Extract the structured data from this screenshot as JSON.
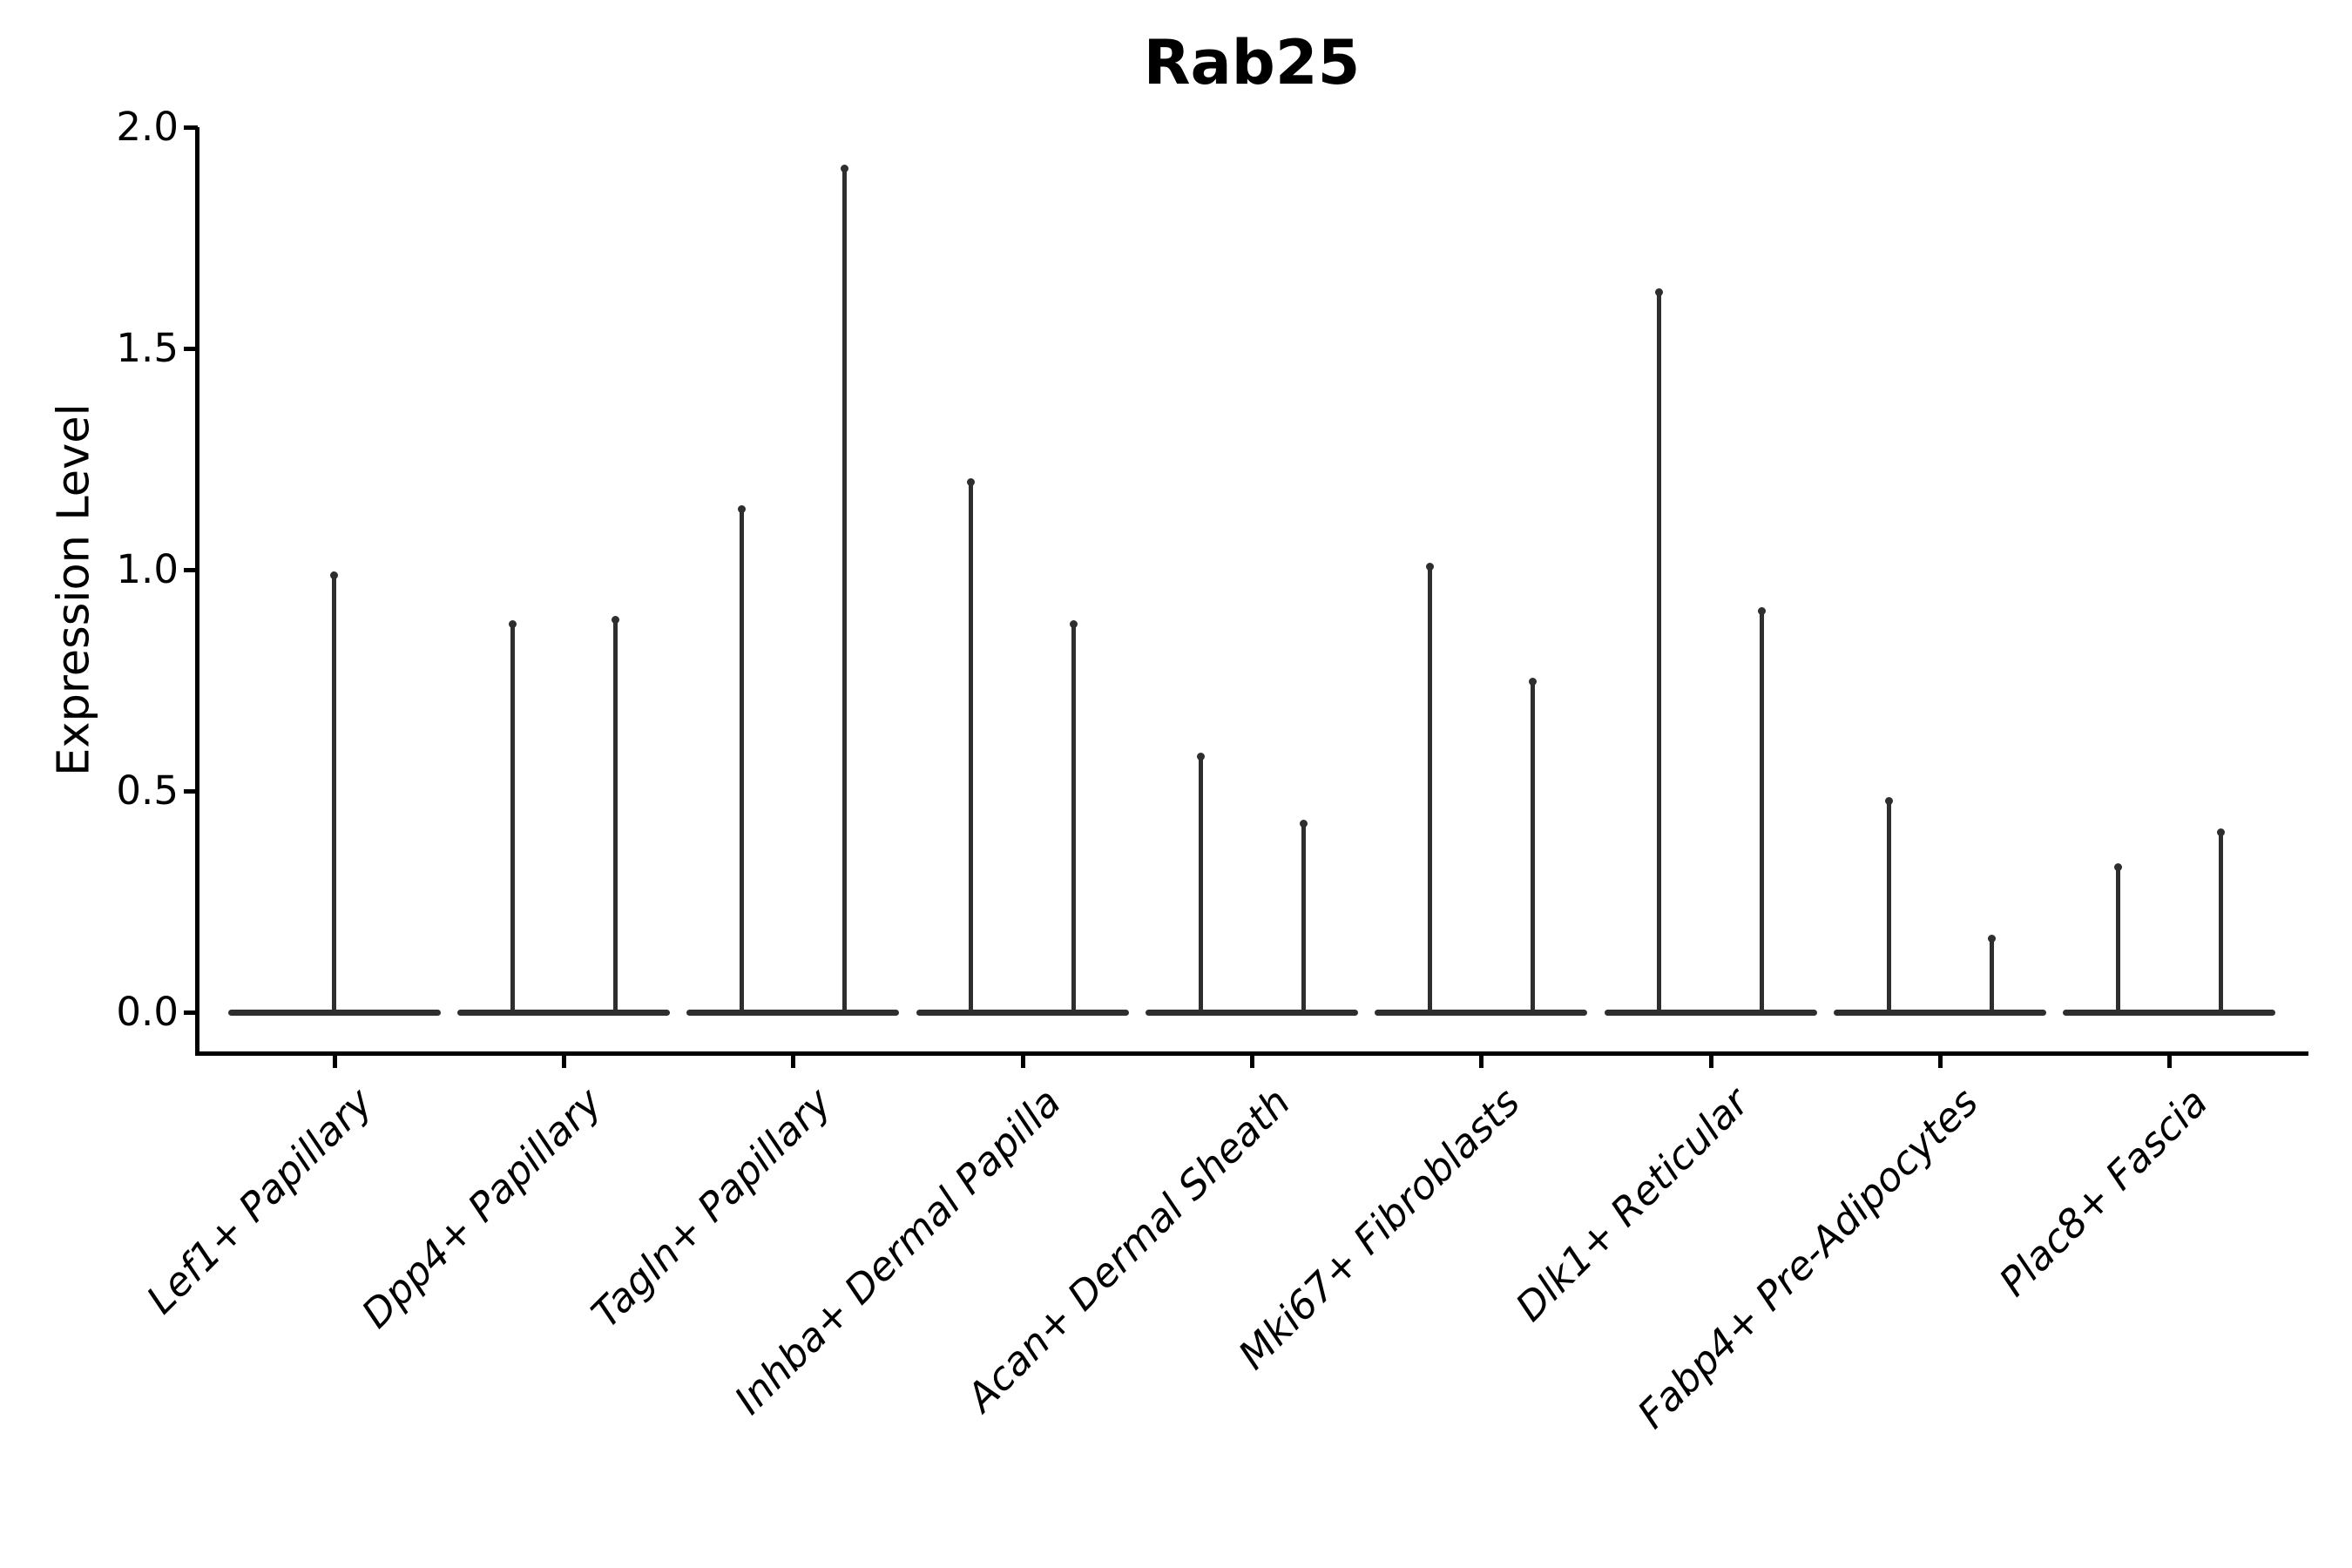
{
  "header": {
    "title": "Rab25"
  },
  "y_axis": {
    "label": "Expression Level",
    "tick_labels": [
      "2.0",
      "1.5",
      "1.0",
      "0.5",
      "0.0"
    ]
  },
  "x_axis": {
    "labels": [
      "Lef1+ Papillary",
      "Dpp4+ Papillary",
      "Tagln+ Papillary",
      "Inhba+ Dermal Papilla",
      "Acan+ Dermal Sheath",
      "Mki67+ Fibroblasts",
      "Dlk1+ Reticular",
      "Fabp4+ Pre-Adipocytes",
      "Plac8+ Fascia"
    ]
  },
  "chart_data": {
    "type": "violin",
    "title": "Rab25",
    "xlabel": "",
    "ylabel": "Expression Level",
    "ylim": [
      -0.09,
      2.0
    ],
    "yticks": [
      2.0,
      1.5,
      1.0,
      0.5,
      0.0
    ],
    "grid": false,
    "legend": false,
    "colors": {
      "violin": "#2e2e2e",
      "axis": "#000000",
      "text": "#000000",
      "background": "#ffffff"
    },
    "categories": [
      "Lef1+ Papillary",
      "Dpp4+ Papillary",
      "Tagln+ Papillary",
      "Inhba+ Dermal Papilla",
      "Acan+ Dermal Sheath",
      "Mki67+ Fibroblasts",
      "Dlk1+ Reticular",
      "Fabp4+ Pre-Adipocytes",
      "Plac8+ Fascia"
    ],
    "violins": [
      {
        "category": "Lef1+ Papillary",
        "base_value": 0.0,
        "spikes": [
          {
            "side": "center",
            "max": 0.99
          }
        ]
      },
      {
        "category": "Dpp4+ Papillary",
        "base_value": 0.0,
        "spikes": [
          {
            "side": "left",
            "max": 0.88
          },
          {
            "side": "right",
            "max": 0.89
          }
        ]
      },
      {
        "category": "Tagln+ Papillary",
        "base_value": 0.0,
        "spikes": [
          {
            "side": "left",
            "max": 1.14
          },
          {
            "side": "right",
            "max": 1.91
          }
        ]
      },
      {
        "category": "Inhba+ Dermal Papilla",
        "base_value": 0.0,
        "spikes": [
          {
            "side": "left",
            "max": 1.2
          },
          {
            "side": "right",
            "max": 0.88
          }
        ]
      },
      {
        "category": "Acan+ Dermal Sheath",
        "base_value": 0.0,
        "spikes": [
          {
            "side": "left",
            "max": 0.58
          },
          {
            "side": "right",
            "max": 0.43
          }
        ]
      },
      {
        "category": "Mki67+ Fibroblasts",
        "base_value": 0.0,
        "spikes": [
          {
            "side": "left",
            "max": 1.01
          },
          {
            "side": "right",
            "max": 0.75
          }
        ]
      },
      {
        "category": "Dlk1+ Reticular",
        "base_value": 0.0,
        "spikes": [
          {
            "side": "left",
            "max": 1.63
          },
          {
            "side": "right",
            "max": 0.91
          }
        ]
      },
      {
        "category": "Fabp4+ Pre-Adipocytes",
        "base_value": 0.0,
        "spikes": [
          {
            "side": "left",
            "max": 0.48
          },
          {
            "side": "right",
            "max": 0.17
          }
        ]
      },
      {
        "category": "Plac8+ Fascia",
        "base_value": 0.0,
        "spikes": [
          {
            "side": "left",
            "max": 0.33
          },
          {
            "side": "right",
            "max": 0.41
          }
        ]
      }
    ]
  }
}
